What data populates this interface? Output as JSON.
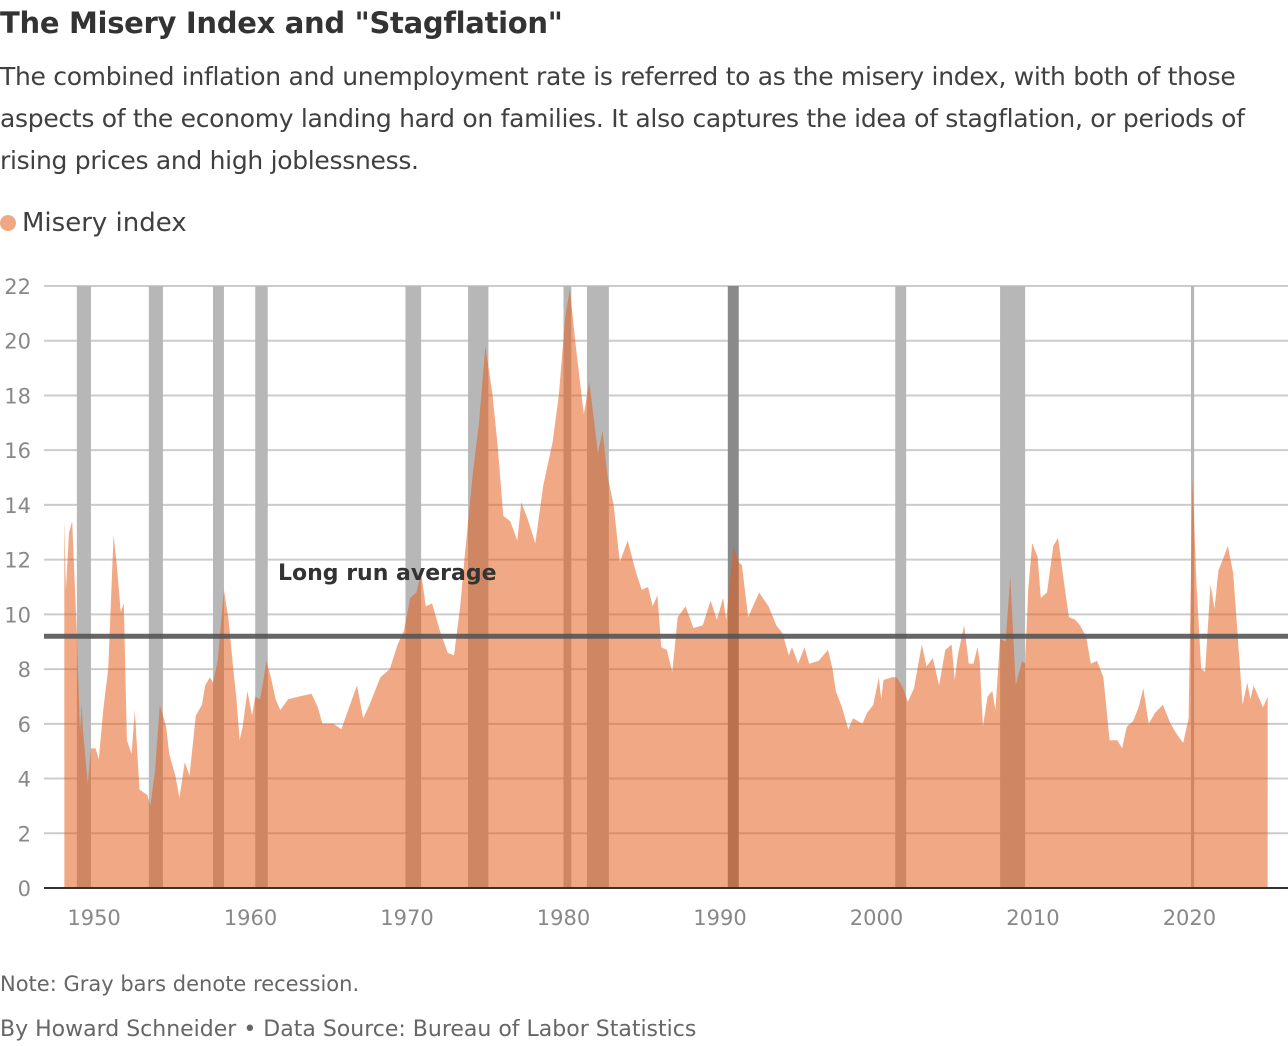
{
  "title": "The Misery Index and \"Stagflation\"",
  "subtitle": "The combined inflation and unemployment rate is referred to as the misery index, with both of those aspects of the economy landing hard on families. It also captures the idea of stagflation, or periods of rising prices and high joblessness.",
  "note": "Note: Gray bars denote recession.",
  "byline": "By Howard Schneider • Data Source: Bureau of Labor Statistics",
  "colors": {
    "series": "#e45d19",
    "recession": "#b7b7b7",
    "recession_highlight": "#8a8a8a",
    "average": "#555555",
    "grid": "#cccccc"
  },
  "chart_data": {
    "type": "area",
    "legend": [
      {
        "label": "Misery index",
        "color": "#f0a884"
      }
    ],
    "legend_placement": "top-left",
    "grid": true,
    "xlim": [
      1946.8,
      2026.3
    ],
    "ylim": [
      0,
      22
    ],
    "x_ticks": [
      1950,
      1960,
      1970,
      1980,
      1990,
      2000,
      2010,
      2020
    ],
    "y_ticks": [
      0,
      2,
      4,
      6,
      8,
      10,
      12,
      14,
      16,
      18,
      20,
      22
    ],
    "average": {
      "label": "Long run average",
      "value": 9.2
    },
    "recessions": [
      [
        1948.9,
        1949.8
      ],
      [
        1953.5,
        1954.4
      ],
      [
        1957.6,
        1958.3
      ],
      [
        1960.3,
        1961.1
      ],
      [
        1969.9,
        1970.9
      ],
      [
        1973.9,
        1975.2
      ],
      [
        1980.0,
        1980.5
      ],
      [
        1981.5,
        1982.9
      ],
      [
        1990.5,
        1991.2
      ],
      [
        2001.2,
        2001.9
      ],
      [
        2007.9,
        2009.5
      ],
      [
        2020.1,
        2020.3
      ]
    ],
    "highlighted_recession": 8,
    "series": [
      {
        "name": "Misery index",
        "points": [
          [
            1948.1,
            13.5
          ],
          [
            1948.2,
            10.9
          ],
          [
            1948.4,
            13.0
          ],
          [
            1948.6,
            13.4
          ],
          [
            1948.9,
            9.2
          ],
          [
            1949.1,
            5.7
          ],
          [
            1949.2,
            6.7
          ],
          [
            1949.3,
            5.7
          ],
          [
            1949.6,
            3.8
          ],
          [
            1949.8,
            5.1
          ],
          [
            1950.1,
            5.1
          ],
          [
            1950.3,
            4.7
          ],
          [
            1950.6,
            6.6
          ],
          [
            1950.9,
            8.0
          ],
          [
            1951.25,
            12.9
          ],
          [
            1951.45,
            11.8
          ],
          [
            1951.7,
            10.1
          ],
          [
            1951.9,
            10.4
          ],
          [
            1952.1,
            5.4
          ],
          [
            1952.4,
            4.9
          ],
          [
            1952.6,
            6.5
          ],
          [
            1952.9,
            3.6
          ],
          [
            1953.4,
            3.4
          ],
          [
            1953.6,
            3.0
          ],
          [
            1953.9,
            4.3
          ],
          [
            1954.2,
            6.7
          ],
          [
            1954.6,
            5.9
          ],
          [
            1954.8,
            4.9
          ],
          [
            1955.2,
            4.1
          ],
          [
            1955.45,
            3.3
          ],
          [
            1955.8,
            4.6
          ],
          [
            1956.1,
            4.1
          ],
          [
            1956.5,
            6.3
          ],
          [
            1956.9,
            6.7
          ],
          [
            1957.1,
            7.4
          ],
          [
            1957.4,
            7.7
          ],
          [
            1957.6,
            7.5
          ],
          [
            1957.9,
            8.3
          ],
          [
            1958.3,
            10.9
          ],
          [
            1958.6,
            9.8
          ],
          [
            1958.9,
            8.0
          ],
          [
            1959.1,
            6.9
          ],
          [
            1959.3,
            5.4
          ],
          [
            1959.5,
            5.9
          ],
          [
            1959.8,
            7.2
          ],
          [
            1960.1,
            6.3
          ],
          [
            1960.3,
            7.0
          ],
          [
            1960.6,
            6.9
          ],
          [
            1960.8,
            7.5
          ],
          [
            1961.0,
            8.3
          ],
          [
            1961.3,
            7.7
          ],
          [
            1961.6,
            6.9
          ],
          [
            1961.9,
            6.5
          ],
          [
            1962.4,
            6.9
          ],
          [
            1963.1,
            7.0
          ],
          [
            1963.9,
            7.1
          ],
          [
            1964.3,
            6.6
          ],
          [
            1964.6,
            6.0
          ],
          [
            1965.3,
            6.0
          ],
          [
            1965.8,
            5.8
          ],
          [
            1966.3,
            6.6
          ],
          [
            1966.8,
            7.4
          ],
          [
            1967.2,
            6.2
          ],
          [
            1967.6,
            6.7
          ],
          [
            1968.3,
            7.7
          ],
          [
            1968.9,
            8.0
          ],
          [
            1969.4,
            8.9
          ],
          [
            1969.8,
            9.4
          ],
          [
            1970.2,
            10.6
          ],
          [
            1970.6,
            10.8
          ],
          [
            1970.9,
            11.5
          ],
          [
            1971.2,
            10.3
          ],
          [
            1971.6,
            10.4
          ],
          [
            1972.1,
            9.4
          ],
          [
            1972.6,
            8.6
          ],
          [
            1973.0,
            8.5
          ],
          [
            1973.4,
            10.3
          ],
          [
            1973.7,
            12.2
          ],
          [
            1974.2,
            15.1
          ],
          [
            1974.6,
            17.0
          ],
          [
            1975.0,
            19.8
          ],
          [
            1975.45,
            18.1
          ],
          [
            1975.8,
            16.1
          ],
          [
            1976.15,
            13.6
          ],
          [
            1976.6,
            13.4
          ],
          [
            1977.05,
            12.7
          ],
          [
            1977.3,
            14.1
          ],
          [
            1977.7,
            13.5
          ],
          [
            1978.2,
            12.6
          ],
          [
            1978.7,
            14.7
          ],
          [
            1979.3,
            16.3
          ],
          [
            1979.7,
            18.0
          ],
          [
            1980.1,
            20.8
          ],
          [
            1980.4,
            21.9
          ],
          [
            1980.75,
            20.0
          ],
          [
            1981.3,
            17.3
          ],
          [
            1981.65,
            18.5
          ],
          [
            1982.2,
            15.9
          ],
          [
            1982.5,
            16.7
          ],
          [
            1982.8,
            15.1
          ],
          [
            1983.2,
            14.0
          ],
          [
            1983.6,
            11.9
          ],
          [
            1984.1,
            12.7
          ],
          [
            1984.6,
            11.6
          ],
          [
            1985.0,
            10.9
          ],
          [
            1985.4,
            11.0
          ],
          [
            1985.7,
            10.3
          ],
          [
            1986.0,
            10.7
          ],
          [
            1986.25,
            8.8
          ],
          [
            1986.6,
            8.7
          ],
          [
            1986.95,
            7.9
          ],
          [
            1987.3,
            9.9
          ],
          [
            1987.8,
            10.3
          ],
          [
            1988.3,
            9.5
          ],
          [
            1988.9,
            9.6
          ],
          [
            1989.4,
            10.5
          ],
          [
            1989.8,
            9.8
          ],
          [
            1990.2,
            10.6
          ],
          [
            1990.4,
            9.8
          ],
          [
            1990.85,
            12.5
          ],
          [
            1991.2,
            11.9
          ],
          [
            1991.4,
            11.8
          ],
          [
            1991.8,
            9.9
          ],
          [
            1992.5,
            10.8
          ],
          [
            1993.1,
            10.3
          ],
          [
            1993.6,
            9.6
          ],
          [
            1994.0,
            9.3
          ],
          [
            1994.4,
            8.5
          ],
          [
            1994.6,
            8.8
          ],
          [
            1995.0,
            8.2
          ],
          [
            1995.4,
            8.8
          ],
          [
            1995.7,
            8.2
          ],
          [
            1996.3,
            8.3
          ],
          [
            1996.9,
            8.7
          ],
          [
            1997.2,
            8.0
          ],
          [
            1997.4,
            7.2
          ],
          [
            1997.8,
            6.6
          ],
          [
            1998.2,
            5.8
          ],
          [
            1998.5,
            6.2
          ],
          [
            1999.1,
            6.0
          ],
          [
            1999.4,
            6.4
          ],
          [
            1999.8,
            6.7
          ],
          [
            2000.15,
            7.7
          ],
          [
            2000.3,
            6.9
          ],
          [
            2000.45,
            7.6
          ],
          [
            2001.0,
            7.7
          ],
          [
            2001.3,
            7.7
          ],
          [
            2001.7,
            7.3
          ],
          [
            2002.0,
            6.8
          ],
          [
            2002.4,
            7.3
          ],
          [
            2002.9,
            8.9
          ],
          [
            2003.2,
            8.1
          ],
          [
            2003.6,
            8.4
          ],
          [
            2004.0,
            7.4
          ],
          [
            2004.4,
            8.7
          ],
          [
            2004.8,
            8.9
          ],
          [
            2005.0,
            7.6
          ],
          [
            2005.2,
            8.5
          ],
          [
            2005.6,
            9.6
          ],
          [
            2005.9,
            8.2
          ],
          [
            2006.2,
            8.2
          ],
          [
            2006.45,
            8.8
          ],
          [
            2006.6,
            8.3
          ],
          [
            2006.8,
            5.9
          ],
          [
            2007.1,
            7.0
          ],
          [
            2007.4,
            7.2
          ],
          [
            2007.6,
            6.5
          ],
          [
            2007.9,
            9.1
          ],
          [
            2008.25,
            9.0
          ],
          [
            2008.55,
            11.4
          ],
          [
            2008.9,
            7.4
          ],
          [
            2009.3,
            8.3
          ],
          [
            2009.5,
            8.2
          ],
          [
            2009.7,
            10.9
          ],
          [
            2009.95,
            12.6
          ],
          [
            2010.3,
            12.1
          ],
          [
            2010.5,
            10.6
          ],
          [
            2010.9,
            10.8
          ],
          [
            2011.3,
            12.5
          ],
          [
            2011.6,
            12.8
          ],
          [
            2011.95,
            11.3
          ],
          [
            2012.3,
            9.9
          ],
          [
            2012.7,
            9.8
          ],
          [
            2013.0,
            9.6
          ],
          [
            2013.4,
            9.2
          ],
          [
            2013.7,
            8.2
          ],
          [
            2014.1,
            8.3
          ],
          [
            2014.5,
            7.7
          ],
          [
            2014.9,
            5.4
          ],
          [
            2015.4,
            5.4
          ],
          [
            2015.7,
            5.1
          ],
          [
            2016.0,
            5.9
          ],
          [
            2016.4,
            6.1
          ],
          [
            2016.75,
            6.6
          ],
          [
            2017.05,
            7.3
          ],
          [
            2017.4,
            6.0
          ],
          [
            2017.8,
            6.4
          ],
          [
            2018.3,
            6.7
          ],
          [
            2018.8,
            6.0
          ],
          [
            2019.1,
            5.7
          ],
          [
            2019.6,
            5.3
          ],
          [
            2019.95,
            6.2
          ],
          [
            2020.2,
            15.0
          ],
          [
            2020.45,
            11.1
          ],
          [
            2020.75,
            8.0
          ],
          [
            2021.0,
            7.9
          ],
          [
            2021.35,
            11.1
          ],
          [
            2021.6,
            10.2
          ],
          [
            2021.85,
            11.6
          ],
          [
            2022.2,
            12.1
          ],
          [
            2022.45,
            12.5
          ],
          [
            2022.8,
            11.5
          ],
          [
            2023.0,
            9.9
          ],
          [
            2023.2,
            8.3
          ],
          [
            2023.4,
            6.7
          ],
          [
            2023.7,
            7.5
          ],
          [
            2023.9,
            6.9
          ],
          [
            2024.1,
            7.4
          ],
          [
            2024.7,
            6.6
          ],
          [
            2025.0,
            7.0
          ]
        ]
      }
    ]
  }
}
